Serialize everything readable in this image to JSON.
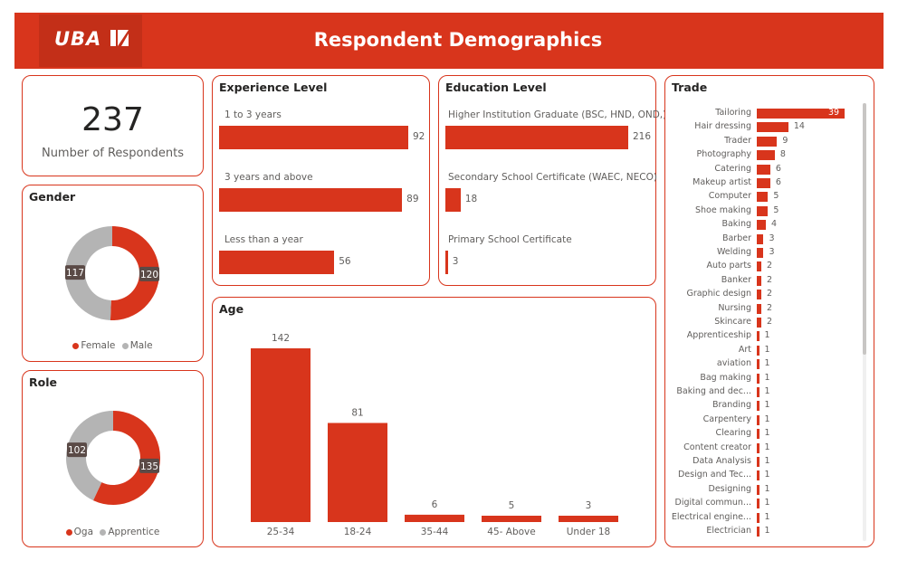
{
  "header": {
    "logo": "UBA",
    "title": "Respondent Demographics"
  },
  "kpi": {
    "value": "237",
    "label": "Number of Respondents"
  },
  "colors": {
    "primary": "#d8351c",
    "secondary": "#b4b4b4"
  },
  "chart_data": [
    {
      "id": "gender",
      "type": "pie",
      "title": "Gender",
      "categories": [
        "Female",
        "Male"
      ],
      "values": [
        120,
        117
      ],
      "colors": [
        "#d8351c",
        "#b4b4b4"
      ],
      "legend": "bottom"
    },
    {
      "id": "role",
      "type": "pie",
      "title": "Role",
      "categories": [
        "Oga",
        "Apprentice"
      ],
      "values": [
        135,
        102
      ],
      "colors": [
        "#d8351c",
        "#b4b4b4"
      ],
      "legend": "bottom"
    },
    {
      "id": "experience",
      "type": "bar",
      "title": "Experience Level",
      "categories": [
        "1 to 3 years",
        "3 years and above",
        "Less than a year"
      ],
      "values": [
        92,
        89,
        56
      ]
    },
    {
      "id": "education",
      "type": "bar",
      "title": "Education Level",
      "categories": [
        "Higher Institution Graduate (BSC, HND, OND,)",
        "Secondary School Certificate (WAEC, NECO)",
        "Primary School Certificate"
      ],
      "values": [
        216,
        18,
        3
      ]
    },
    {
      "id": "age",
      "type": "bar",
      "title": "Age",
      "categories": [
        "25-34",
        "18-24",
        "35-44",
        "45- Above",
        "Under 18"
      ],
      "values": [
        142,
        81,
        6,
        5,
        3
      ]
    },
    {
      "id": "trade",
      "type": "bar",
      "title": "Trade",
      "categories": [
        "Tailoring",
        "Hair dressing",
        "Trader",
        "Photography",
        "Catering",
        "Makeup artist",
        "Computer",
        "Shoe making",
        "Baking",
        "Barber",
        "Welding",
        "Auto parts",
        "Banker",
        "Graphic design",
        "Nursing",
        "Skincare",
        "Apprenticeship",
        "Art",
        "aviation",
        "Bag making",
        "Baking and dec...",
        "Branding",
        "Carpentery",
        "Clearing",
        "Content creator",
        "Data Analysis",
        "Design and Tec...",
        "Designing",
        "Digital commun...",
        "Electrical engine...",
        "Electrician"
      ],
      "values": [
        39,
        14,
        9,
        8,
        6,
        6,
        5,
        5,
        4,
        3,
        3,
        2,
        2,
        2,
        2,
        2,
        1,
        1,
        1,
        1,
        1,
        1,
        1,
        1,
        1,
        1,
        1,
        1,
        1,
        1,
        1
      ]
    }
  ]
}
